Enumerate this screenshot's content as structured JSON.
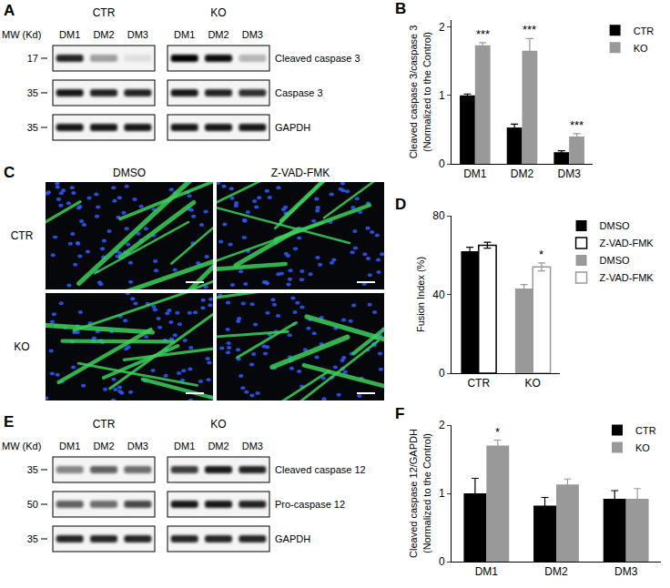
{
  "figure": {
    "blots": [
      {
        "panel": "A",
        "mw_header": "MW (Kd)",
        "groups": [
          "CTR",
          "KO"
        ],
        "lanes": [
          "DM1",
          "DM2",
          "DM3"
        ],
        "rows": [
          {
            "name": "Cleaved caspase 3",
            "mw": 17,
            "intensity": [
              [
                0.85,
                0.35,
                0.08
              ],
              [
                1.0,
                0.95,
                0.25
              ]
            ]
          },
          {
            "name": "Caspase 3",
            "mw": 35,
            "intensity": [
              [
                0.9,
                0.85,
                0.85
              ],
              [
                0.9,
                0.85,
                0.8
              ]
            ]
          },
          {
            "name": "GAPDH",
            "mw": 35,
            "intensity": [
              [
                0.9,
                0.9,
                0.9
              ],
              [
                0.9,
                0.9,
                0.9
              ]
            ]
          }
        ]
      },
      {
        "panel": "E",
        "mw_header": "MW (Kd)",
        "groups": [
          "CTR",
          "KO"
        ],
        "lanes": [
          "DM1",
          "DM2",
          "DM3"
        ],
        "rows": [
          {
            "name": "Cleaved caspase 12",
            "mw": 35,
            "intensity": [
              [
                0.45,
                0.6,
                0.55
              ],
              [
                0.75,
                0.9,
                0.85
              ]
            ]
          },
          {
            "name": "Pro-caspase 12",
            "mw": 50,
            "intensity": [
              [
                0.6,
                0.55,
                0.7
              ],
              [
                0.9,
                0.9,
                0.85
              ]
            ]
          },
          {
            "name": "GAPDH",
            "mw": 35,
            "intensity": [
              [
                0.85,
                0.85,
                0.85
              ],
              [
                0.85,
                0.85,
                0.85
              ]
            ]
          }
        ]
      }
    ],
    "micrographs": {
      "panel": "C",
      "columns": [
        "DMSO",
        "Z-VAD-FMK"
      ],
      "rows": [
        "CTR",
        "KO"
      ]
    }
  },
  "chart_data": [
    {
      "panel": "B",
      "type": "bar",
      "ylabel": [
        "Cleaved caspase 3/caspase 3",
        "(Normalized to the Control)"
      ],
      "categories": [
        "DM1",
        "DM2",
        "DM3"
      ],
      "series": [
        {
          "name": "CTR",
          "color": "#000000",
          "values": [
            1.0,
            0.53,
            0.17
          ],
          "errors": [
            0.02,
            0.05,
            0.02
          ]
        },
        {
          "name": "KO",
          "color": "#999999",
          "values": [
            1.73,
            1.65,
            0.4
          ],
          "errors": [
            0.04,
            0.18,
            0.04
          ]
        }
      ],
      "ylim": [
        0,
        2.1
      ],
      "yticks": [
        0,
        1,
        2
      ],
      "grid": false,
      "legend": "right",
      "annotations": [
        {
          "text": "***",
          "category": "DM1",
          "series": "KO"
        },
        {
          "text": "***",
          "category": "DM2",
          "series": "KO"
        },
        {
          "text": "***",
          "category": "DM3",
          "series": "KO"
        }
      ]
    },
    {
      "panel": "D",
      "type": "bar",
      "ylabel": [
        "Fusion Index (%)"
      ],
      "categories": [
        "CTR",
        "KO"
      ],
      "series": [
        {
          "name": "DMSO",
          "color": "#000000",
          "values": [
            62,
            null
          ],
          "errors": [
            2,
            null
          ]
        },
        {
          "name": "Z-VAD-FMK",
          "color": "#000000",
          "marker": "open",
          "values": [
            65,
            null
          ],
          "errors": [
            1.5,
            null
          ]
        },
        {
          "name": "DMSO",
          "color": "#999999",
          "values": [
            null,
            43
          ],
          "errors": [
            null,
            2
          ]
        },
        {
          "name": "Z-VAD-FMK",
          "color": "#999999",
          "marker": "open",
          "values": [
            null,
            54
          ],
          "errors": [
            null,
            2
          ]
        }
      ],
      "ylim": [
        0,
        80
      ],
      "yticks": [
        0,
        40,
        80
      ],
      "grid": false,
      "legend": "right",
      "annotations": [
        {
          "text": "*",
          "category": "KO",
          "series": "Z-VAD-FMK"
        }
      ]
    },
    {
      "panel": "F",
      "type": "bar",
      "ylabel": [
        "Cleaved caspase 12/GAPDH",
        "(Normalized to the Control)"
      ],
      "categories": [
        "DM1",
        "DM2",
        "DM3"
      ],
      "series": [
        {
          "name": "CTR",
          "color": "#000000",
          "values": [
            1.0,
            0.82,
            0.92
          ],
          "errors": [
            0.22,
            0.12,
            0.12
          ]
        },
        {
          "name": "KO",
          "color": "#999999",
          "values": [
            1.7,
            1.13,
            0.92
          ],
          "errors": [
            0.08,
            0.08,
            0.15
          ]
        }
      ],
      "ylim": [
        0,
        2
      ],
      "yticks": [
        0,
        1,
        2
      ],
      "grid": false,
      "legend": "top right",
      "annotations": [
        {
          "text": "*",
          "category": "DM1",
          "series": "KO"
        }
      ]
    }
  ]
}
